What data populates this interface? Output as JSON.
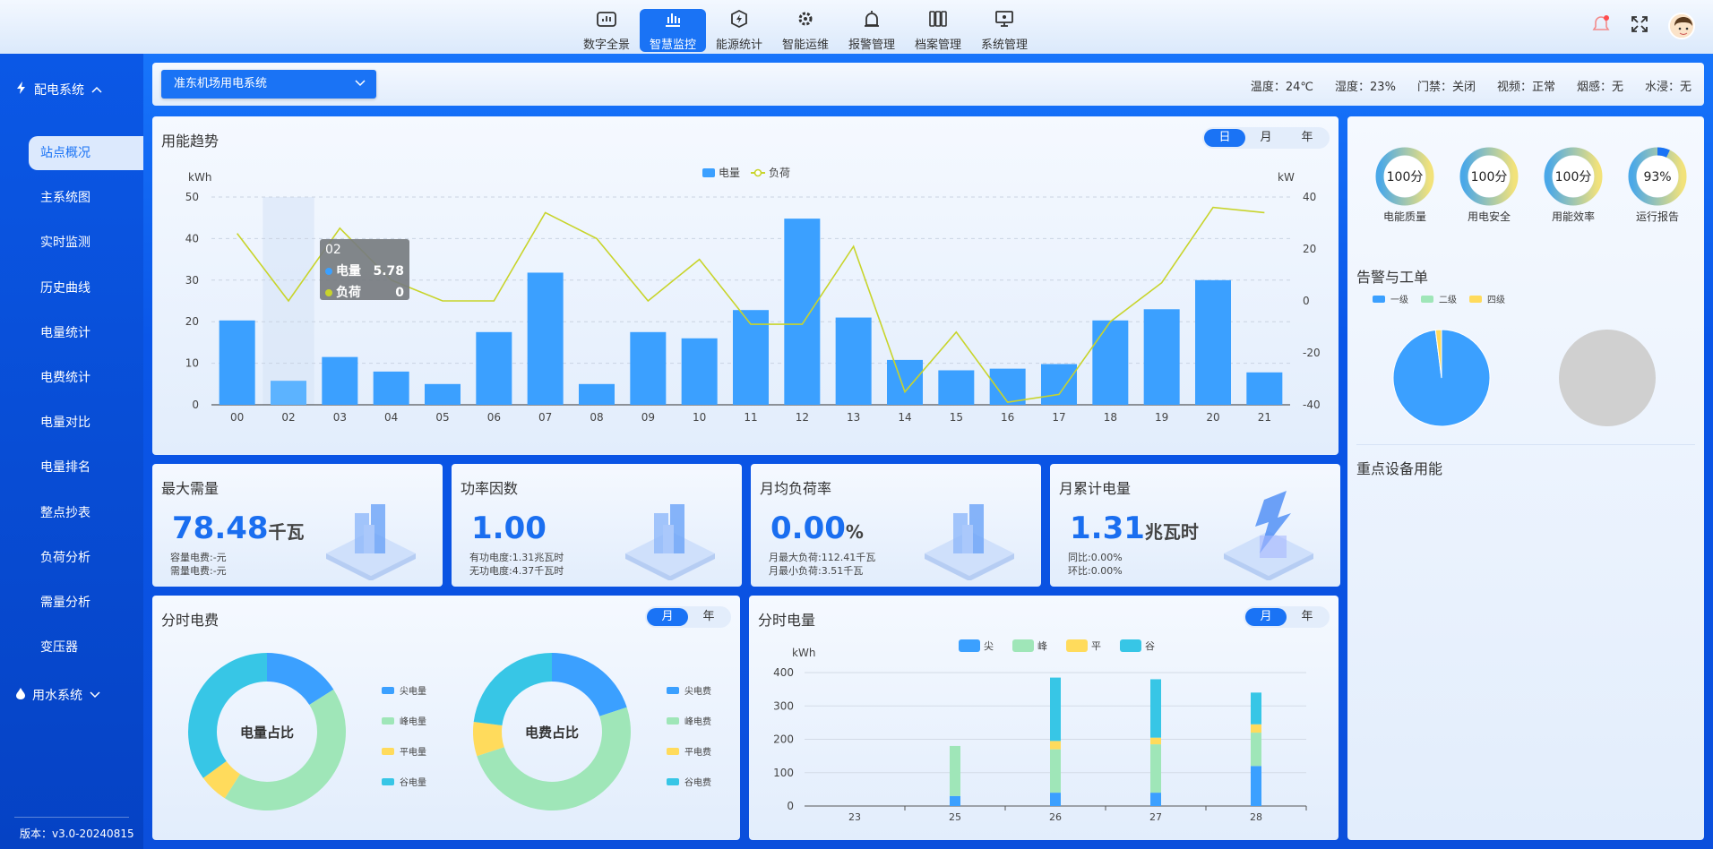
{
  "nav": [
    {
      "label": "数字全景",
      "icon": "dashboard-icon"
    },
    {
      "label": "智慧监控",
      "icon": "bar-monitor-icon",
      "active": true
    },
    {
      "label": "能源统计",
      "icon": "energy-bolt-icon"
    },
    {
      "label": "智能运维",
      "icon": "gear-icon"
    },
    {
      "label": "报警管理",
      "icon": "alarm-icon"
    },
    {
      "label": "档案管理",
      "icon": "archive-icon"
    },
    {
      "label": "系统管理",
      "icon": "monitor-icon"
    }
  ],
  "sidebar": {
    "group1": "配电系统",
    "items": [
      "站点概况",
      "主系统图",
      "实时监测",
      "历史曲线",
      "电量统计",
      "电费统计",
      "电量对比",
      "电量排名",
      "整点抄表",
      "负荷分析",
      "需量分析",
      "变压器"
    ],
    "group2": "用水系统",
    "version": "版本：v3.0-20240815"
  },
  "station": {
    "selected": "准东机场用电系统"
  },
  "env": [
    "温度：24℃",
    "湿度：23%",
    "门禁：关闭",
    "视频：正常",
    "烟感：无",
    "水浸：无"
  ],
  "trend": {
    "title": "用能趋势",
    "tabs": [
      "日",
      "月",
      "年"
    ],
    "tooltip": {
      "title": "02",
      "rows": [
        {
          "name": "电量",
          "value": "5.78"
        },
        {
          "name": "负荷",
          "value": "0"
        }
      ]
    }
  },
  "kpis": [
    {
      "title": "最大需量",
      "value": "78.48",
      "unit": "千瓦",
      "subs": [
        "容量电费:-元",
        "需量电费:-元"
      ]
    },
    {
      "title": "功率因数",
      "value": "1.00",
      "unit": "",
      "subs": [
        "有功电度:1.31兆瓦时",
        "无功电度:4.37千瓦时"
      ]
    },
    {
      "title": "月均负荷率",
      "value": "0.00",
      "unit": "%",
      "subs": [
        "月最大负荷:112.41千瓦",
        "月最小负荷:3.51千瓦"
      ]
    },
    {
      "title": "月累计电量",
      "value": "1.31",
      "unit": "兆瓦时",
      "subs": [
        "同比:0.00%",
        "环比:0.00%"
      ]
    }
  ],
  "fee": {
    "title": "分时电费",
    "tabs": [
      "月",
      "年"
    ],
    "donut1": "电量占比",
    "donut2": "电费占比",
    "legend1": [
      "尖电量",
      "峰电量",
      "平电量",
      "谷电量"
    ],
    "legend2": [
      "尖电费",
      "峰电费",
      "平电费",
      "谷电费"
    ]
  },
  "period": {
    "title": "分时电量",
    "tabs": [
      "月",
      "年"
    ]
  },
  "right": {
    "rings": [
      {
        "value": "100分",
        "label": "电能质量"
      },
      {
        "value": "100分",
        "label": "用电安全"
      },
      {
        "value": "100分",
        "label": "用能效率"
      },
      {
        "value": "93%",
        "label": "运行报告"
      }
    ],
    "alarm_title": "告警与工单",
    "alarm_legend": [
      "一级",
      "二级",
      "四级"
    ],
    "device_title": "重点设备用能"
  },
  "colors": {
    "blue": "#3ba0ff",
    "green": "#9fe6b8",
    "yellow": "#ffdb5c",
    "cyan": "#37c6e6",
    "line": "#c8d42b",
    "accent": "#1a73f5"
  },
  "chart_data": [
    {
      "type": "bar+line",
      "title": "",
      "categories": [
        "00",
        "02",
        "03",
        "04",
        "05",
        "06",
        "07",
        "08",
        "09",
        "10",
        "11",
        "12",
        "13",
        "14",
        "15",
        "16",
        "17",
        "18",
        "19",
        "20",
        "21"
      ],
      "series": [
        {
          "name": "电量",
          "axis": "left",
          "values": [
            20.3,
            5.78,
            11.5,
            8,
            5,
            17.5,
            31.8,
            5,
            17.5,
            16,
            22.8,
            44.8,
            21,
            10.8,
            8.3,
            8.7,
            9.8,
            20.3,
            23,
            30,
            7.8
          ]
        },
        {
          "name": "负荷",
          "axis": "right",
          "values": [
            26,
            0,
            28,
            8,
            0,
            0,
            34,
            24,
            0,
            16,
            -9,
            -9,
            21,
            -35,
            -12,
            -39,
            -36,
            -8,
            7,
            36,
            34
          ]
        }
      ],
      "ylabel_left": "kWh",
      "ylim_left": [
        0,
        50
      ],
      "yticks_left": [
        0,
        10,
        20,
        30,
        40,
        50
      ],
      "ylabel_right": "kW",
      "ylim_right": [
        -40,
        40
      ],
      "yticks_right": [
        -40,
        -20,
        0,
        20,
        40
      ],
      "legend": "top"
    },
    {
      "type": "pie",
      "title": "电量占比",
      "labels": [
        "尖电量",
        "峰电量",
        "平电量",
        "谷电量"
      ],
      "values": [
        16,
        43,
        6,
        35
      ]
    },
    {
      "type": "pie",
      "title": "电费占比",
      "labels": [
        "尖电费",
        "峰电费",
        "平电费",
        "谷电费"
      ],
      "values": [
        20,
        50,
        7,
        23
      ]
    },
    {
      "type": "bar",
      "stacked": true,
      "title": "",
      "categories": [
        "23",
        "25",
        "26",
        "27",
        "28"
      ],
      "series": [
        {
          "name": "尖",
          "values": [
            0,
            30,
            40,
            40,
            120
          ]
        },
        {
          "name": "峰",
          "values": [
            0,
            150,
            130,
            145,
            100
          ]
        },
        {
          "name": "平",
          "values": [
            0,
            0,
            25,
            20,
            25
          ]
        },
        {
          "name": "谷",
          "values": [
            0,
            0,
            190,
            175,
            95
          ]
        }
      ],
      "ylabel": "kWh",
      "ylim": [
        0,
        400
      ],
      "yticks": [
        0,
        100,
        200,
        300,
        400
      ],
      "legend": "top"
    },
    {
      "type": "pie",
      "title": "",
      "labels": [
        "一级",
        "二级",
        "四级"
      ],
      "values": [
        98,
        0,
        2
      ]
    }
  ]
}
